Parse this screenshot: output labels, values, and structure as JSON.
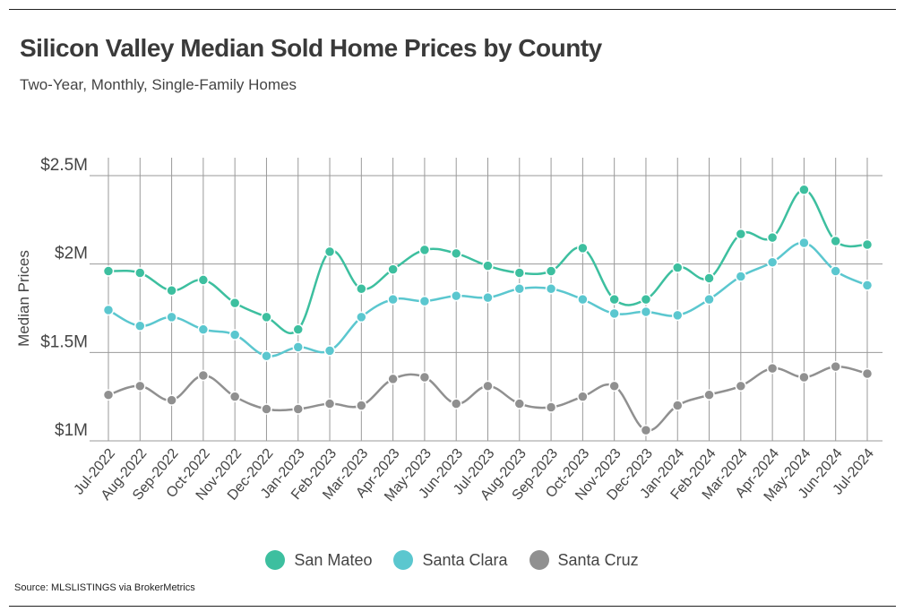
{
  "title": "Silicon Valley Median Sold Home Prices by County",
  "subtitle": "Two-Year, Monthly, Single-Family Homes",
  "source": "Source:  MLSLISTINGS via BrokerMetrics",
  "colors": {
    "san_mateo": "#3dbf9f",
    "santa_clara": "#5bc7cf",
    "santa_cruz": "#909090"
  },
  "chart_data": {
    "type": "line",
    "ylabel": "Median Prices",
    "xlabel": "",
    "ylim": [
      1000000,
      2500000
    ],
    "yticks": [
      {
        "value": 1000000,
        "label": "$1M"
      },
      {
        "value": 1500000,
        "label": "$1.5M"
      },
      {
        "value": 2000000,
        "label": "$2M"
      },
      {
        "value": 2500000,
        "label": "$2.5M"
      }
    ],
    "grid": true,
    "legend_position": "bottom",
    "categories": [
      "Jul-2022",
      "Aug-2022",
      "Sep-2022",
      "Oct-2022",
      "Nov-2022",
      "Dec-2022",
      "Jan-2023",
      "Feb-2023",
      "Mar-2023",
      "Apr-2023",
      "May-2023",
      "Jun-2023",
      "Jul-2023",
      "Aug-2023",
      "Sep-2023",
      "Oct-2023",
      "Nov-2023",
      "Dec-2023",
      "Jan-2024",
      "Feb-2024",
      "Mar-2024",
      "Apr-2024",
      "May-2024",
      "Jun-2024",
      "Jul-2024"
    ],
    "series": [
      {
        "name": "San Mateo",
        "color": "#3dbf9f",
        "values": [
          1960000,
          1950000,
          1850000,
          1910000,
          1780000,
          1700000,
          1630000,
          2070000,
          1860000,
          1970000,
          2080000,
          2060000,
          1990000,
          1950000,
          1960000,
          2090000,
          1800000,
          1800000,
          1980000,
          1920000,
          2170000,
          2150000,
          2420000,
          2130000,
          2110000
        ]
      },
      {
        "name": "Santa Clara",
        "color": "#5bc7cf",
        "values": [
          1740000,
          1650000,
          1700000,
          1630000,
          1600000,
          1480000,
          1530000,
          1510000,
          1700000,
          1800000,
          1790000,
          1820000,
          1810000,
          1860000,
          1860000,
          1800000,
          1720000,
          1730000,
          1710000,
          1800000,
          1930000,
          2010000,
          2120000,
          1960000,
          1880000
        ]
      },
      {
        "name": "Santa Cruz",
        "color": "#909090",
        "values": [
          1260000,
          1310000,
          1230000,
          1370000,
          1250000,
          1180000,
          1180000,
          1210000,
          1200000,
          1350000,
          1360000,
          1210000,
          1310000,
          1210000,
          1190000,
          1250000,
          1310000,
          1060000,
          1200000,
          1260000,
          1310000,
          1410000,
          1360000,
          1420000,
          1380000
        ]
      }
    ]
  }
}
